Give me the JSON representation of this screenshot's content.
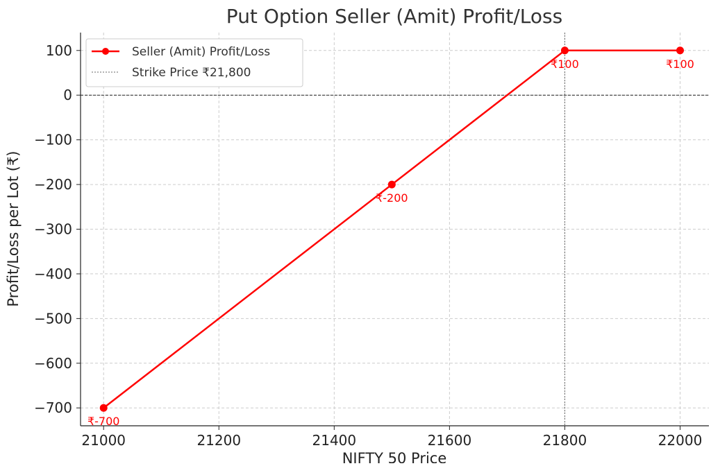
{
  "chart_data": {
    "type": "line",
    "title": "Put Option Seller (Amit) Profit/Loss",
    "xlabel": "NIFTY 50 Price",
    "ylabel": "Profit/Loss per Lot (₹)",
    "xlim": [
      20960,
      22050
    ],
    "ylim": [
      -740,
      140
    ],
    "xticks": [
      21000,
      21200,
      21400,
      21600,
      21800,
      22000
    ],
    "xtick_labels": [
      "21000",
      "21200",
      "21400",
      "21600",
      "21800",
      "22000"
    ],
    "yticks": [
      100,
      0,
      -100,
      -200,
      -300,
      -400,
      -500,
      -600,
      -700
    ],
    "ytick_labels": [
      "100",
      "0",
      "−100",
      "−200",
      "−300",
      "−400",
      "−500",
      "−600",
      "−700"
    ],
    "grid": true,
    "legend_position": "top-left",
    "series": [
      {
        "name": "Seller (Amit) Profit/Loss",
        "color": "#ff0000",
        "x": [
          21000,
          21500,
          21800,
          22000
        ],
        "y": [
          -700,
          -200,
          100,
          100
        ],
        "marker": "circle"
      }
    ],
    "data_labels": [
      "₹-700",
      "₹-200",
      "₹100",
      "₹100"
    ],
    "reference_lines": [
      {
        "orientation": "vertical",
        "value": 21800,
        "name": "Strike Price ₹21,800",
        "color": "#666666",
        "style": "dashed"
      },
      {
        "orientation": "horizontal",
        "value": 0,
        "color": "#222222",
        "style": "dashed"
      }
    ]
  }
}
